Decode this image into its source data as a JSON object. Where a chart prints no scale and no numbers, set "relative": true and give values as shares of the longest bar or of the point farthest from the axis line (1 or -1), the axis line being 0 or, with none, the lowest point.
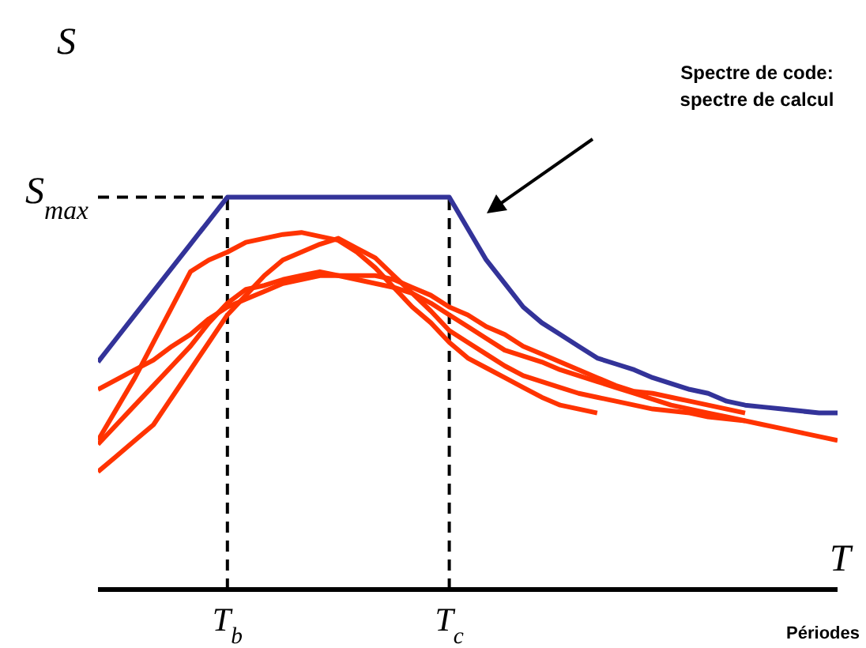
{
  "chart_data": {
    "type": "line",
    "relative": true,
    "xlabel": "T",
    "ylabel": "S",
    "marker": "none",
    "line_style": "solid",
    "categories": [
      null,
      null,
      null,
      null,
      null,
      null,
      null,
      "T$_{b}$",
      null,
      null,
      null,
      null,
      null,
      null,
      null,
      null,
      null,
      null,
      null,
      "T$_{c}$",
      null,
      null,
      null,
      null,
      null,
      null,
      null,
      null,
      null,
      null,
      null,
      null,
      null,
      null,
      null,
      null,
      null,
      null,
      null,
      null,
      null
    ],
    "ref_lines": [
      {
        "axis": "y",
        "value": 1,
        "label": "S$_{max}$",
        "line_style": "dashed",
        "color": "#000000"
      },
      {
        "axis": "x",
        "value": "T$_{b}$",
        "label": null,
        "line_style": "dashed",
        "color": "#000000"
      },
      {
        "axis": "x",
        "value": "T$_{c}$",
        "label": null,
        "line_style": "dashed",
        "color": "#000000"
      }
    ],
    "annotations": [
      "Spectre de code:\nspectre de calcul",
      "Périodes"
    ],
    "series": [
      {
        "color": "#333399",
        "values": [
          0.58,
          0.64,
          0.7,
          0.76,
          0.82,
          0.88,
          0.94,
          1,
          1,
          1,
          1,
          1,
          1,
          1,
          1,
          1,
          1,
          1,
          1,
          1,
          0.92,
          0.84,
          0.78,
          0.72,
          0.68,
          0.65,
          0.62,
          0.59,
          0.575,
          0.56,
          0.54,
          0.525,
          0.51,
          0.5,
          0.48,
          0.47,
          0.465,
          0.46,
          0.455,
          0.45,
          0.45
        ]
      },
      {
        "color": "#ff3300",
        "values": [
          0.51,
          0.535,
          0.56,
          0.585,
          0.62,
          0.65,
          0.69,
          0.72,
          0.74,
          0.76,
          0.78,
          0.79,
          0.8,
          0.8,
          0.8,
          0.8,
          0.79,
          0.77,
          0.75,
          0.72,
          0.7,
          0.67,
          0.65,
          0.62,
          0.6,
          0.58,
          0.56,
          0.54,
          0.52,
          0.505,
          0.5,
          0.49,
          0.48,
          0.47,
          0.46,
          0.45,
          null,
          null,
          null,
          null,
          null
        ]
      },
      {
        "color": "#ff3300",
        "values": [
          0.38,
          0.46,
          0.54,
          0.63,
          0.72,
          0.81,
          0.84,
          0.86,
          0.885,
          0.895,
          0.905,
          0.91,
          0.9,
          0.89,
          0.86,
          0.82,
          0.77,
          0.72,
          0.68,
          0.63,
          0.59,
          0.565,
          0.54,
          0.515,
          0.49,
          0.47,
          0.46,
          0.45,
          null,
          null,
          null,
          null,
          null,
          null,
          null,
          null,
          null,
          null,
          null,
          null,
          null
        ]
      },
      {
        "color": "#ff3300",
        "values": [
          0.3,
          0.34,
          0.38,
          0.42,
          0.49,
          0.56,
          0.63,
          0.7,
          0.75,
          0.8,
          0.84,
          0.86,
          0.88,
          0.895,
          0.87,
          0.845,
          0.8,
          0.755,
          0.71,
          0.66,
          0.63,
          0.6,
          0.57,
          0.545,
          0.53,
          0.515,
          0.5,
          0.49,
          0.48,
          0.47,
          0.46,
          0.455,
          0.45,
          0.44,
          0.435,
          0.43,
          null,
          null,
          null,
          null,
          null
        ]
      },
      {
        "color": "#ff3300",
        "values": [
          0.37,
          0.42,
          0.47,
          0.52,
          0.57,
          0.62,
          0.68,
          0.73,
          0.765,
          0.775,
          0.79,
          0.8,
          0.81,
          0.8,
          0.79,
          0.78,
          0.77,
          0.755,
          0.73,
          0.7,
          0.67,
          0.64,
          0.61,
          0.595,
          0.58,
          0.56,
          0.545,
          0.53,
          0.515,
          0.5,
          0.485,
          0.47,
          0.46,
          0.45,
          0.44,
          0.43,
          0.42,
          0.41,
          0.4,
          0.39,
          0.38
        ]
      }
    ]
  }
}
